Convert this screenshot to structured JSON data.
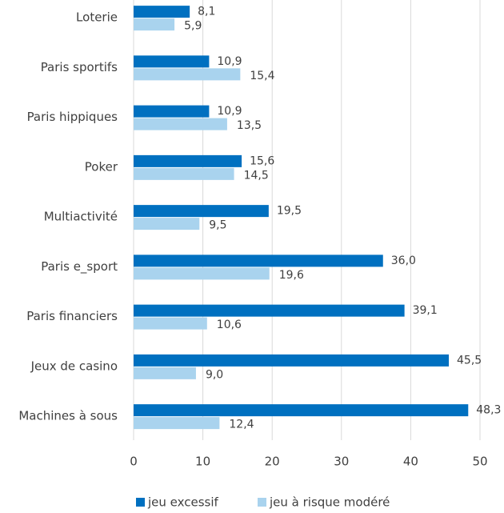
{
  "chart_data": {
    "type": "hbar",
    "categories": [
      "Loterie",
      "Paris sportifs",
      "Paris hippiques",
      "Poker",
      "Multiactivité",
      "Paris e_sport",
      "Paris financiers",
      "Jeux de casino",
      "Machines à sous"
    ],
    "series": [
      {
        "name": "jeu excessif",
        "color": "#0070c0",
        "values": [
          8.1,
          10.9,
          10.9,
          15.6,
          19.5,
          36.0,
          39.1,
          45.5,
          48.3
        ],
        "value_labels": [
          "8,1",
          "10,9",
          "10,9",
          "15,6",
          "19,5",
          "36,0",
          "39,1",
          "45,5",
          "48,3"
        ]
      },
      {
        "name": "jeu à risque modéré",
        "color": "#a9d3ee",
        "values": [
          5.9,
          15.4,
          13.5,
          14.5,
          9.5,
          19.6,
          10.6,
          9.0,
          12.4
        ],
        "value_labels": [
          "5,9",
          "15,4",
          "13,5",
          "14,5",
          "9,5",
          "19,6",
          "10,6",
          "9,0",
          "12,4"
        ]
      }
    ],
    "xlim": [
      0,
      50
    ],
    "xticks": [
      0,
      10,
      20,
      30,
      40,
      50
    ],
    "grid": true,
    "legend": "bottom"
  }
}
